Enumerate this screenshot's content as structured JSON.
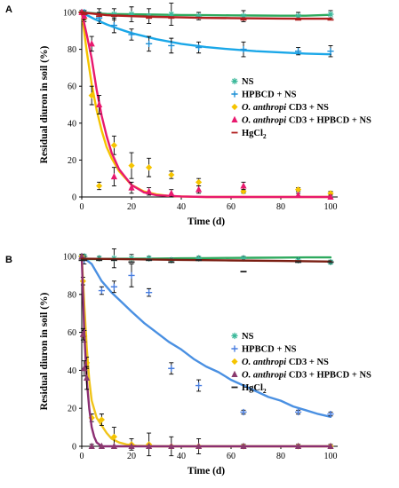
{
  "chart_data": [
    {
      "panel": "A",
      "type": "scatter",
      "xlabel": "Time (d)",
      "ylabel": "Residual diuron in soil (%)",
      "xlim": [
        0,
        100
      ],
      "ylim": [
        0,
        100
      ],
      "xticks": [
        0,
        20,
        40,
        60,
        80,
        100
      ],
      "yticks": [
        0,
        20,
        40,
        60,
        80,
        100
      ],
      "grid": false,
      "legend_position": "right-middle",
      "series": [
        {
          "name": "NS",
          "color": "#3bb89a",
          "marker": "asterisk",
          "x": [
            0,
            1,
            7,
            13,
            20,
            27,
            36,
            47,
            65,
            87,
            100
          ],
          "y": [
            100,
            100,
            99,
            99,
            99,
            98,
            99,
            98,
            98,
            98,
            99
          ],
          "err": [
            1,
            1,
            3,
            3,
            4,
            4,
            6,
            2,
            3,
            2,
            2
          ],
          "fit": {
            "color": "#2eaa5e",
            "x": [
              0,
              5,
              10,
              20,
              30,
              40,
              50,
              60,
              70,
              80,
              90,
              100
            ],
            "y": [
              100,
              99.5,
              99.2,
              99,
              98.8,
              98.6,
              98.5,
              98.4,
              98.3,
              98.2,
              98.2,
              98.7
            ]
          }
        },
        {
          "name": "HPBCD + NS",
          "color": "#1e90d6",
          "marker": "plus",
          "x": [
            0,
            1,
            7,
            13,
            20,
            27,
            36,
            47,
            65,
            87,
            100
          ],
          "y": [
            100,
            100,
            97,
            93,
            88,
            83,
            82,
            81,
            80,
            79,
            79
          ],
          "err": [
            1,
            1,
            3,
            4,
            3,
            4,
            4,
            3,
            4,
            2,
            3
          ],
          "fit": {
            "color": "#1aa7e8",
            "x": [
              0,
              5,
              10,
              15,
              20,
              30,
              40,
              50,
              60,
              70,
              80,
              90,
              100
            ],
            "y": [
              100,
              96.5,
              93.5,
              91,
              88.8,
              85.5,
              83,
              81.2,
              80,
              79,
              78.3,
              77.7,
              77.3
            ]
          }
        },
        {
          "name": "O. anthropi CD3 + NS",
          "color": "#f5c400",
          "marker": "diamond",
          "x": [
            0,
            1,
            4,
            7,
            13,
            20,
            27,
            36,
            47,
            65,
            87,
            100
          ],
          "y": [
            100,
            97,
            55,
            6,
            28,
            17,
            16,
            12,
            8,
            3,
            4,
            2
          ],
          "err": [
            1,
            2,
            5,
            2,
            5,
            7,
            5,
            2,
            2,
            1,
            1,
            1
          ],
          "fit": {
            "color": "#f5c400",
            "x": [
              0,
              2,
              4,
              6,
              8,
              10,
              12,
              15,
              20,
              25,
              30,
              35,
              40,
              50,
              60,
              70,
              80,
              90,
              100
            ],
            "y": [
              100,
              79,
              61,
              47,
              36,
              27,
              21,
              14,
              6.5,
              3,
              1.4,
              0.6,
              0.3,
              0,
              0,
              0,
              0,
              0,
              0
            ]
          }
        },
        {
          "name": "O. anthropi CD3 + HPBCD + NS",
          "color": "#e8196e",
          "marker": "triangle",
          "x": [
            0,
            1,
            4,
            7,
            13,
            20,
            27,
            36,
            47,
            65,
            87,
            100
          ],
          "y": [
            100,
            98,
            83,
            50,
            11,
            5,
            3,
            2,
            4,
            6,
            1,
            0
          ],
          "err": [
            1,
            2,
            4,
            5,
            5,
            3,
            2,
            2,
            2,
            2,
            1,
            1
          ],
          "fit": {
            "color": "#e8196e",
            "x": [
              0,
              2,
              4,
              6,
              8,
              10,
              12,
              15,
              20,
              25,
              30,
              40,
              50,
              60,
              70,
              80,
              90,
              100
            ],
            "y": [
              100,
              88,
              75,
              58,
              44,
              33,
              24,
              15,
              6.5,
              2.5,
              1,
              0.3,
              0,
              0,
              0,
              0,
              0,
              0
            ]
          }
        },
        {
          "name": "HgCl",
          "name_sub": "2",
          "color": "#b01e1e",
          "marker": "dash",
          "x": [
            0,
            1,
            7,
            13,
            20,
            27,
            36,
            47,
            65,
            87,
            100
          ],
          "y": [
            100,
            99,
            98,
            98,
            98,
            97,
            97,
            97,
            96,
            96,
            96
          ],
          "err": [
            0,
            0,
            0,
            0,
            0,
            0,
            0,
            0,
            0,
            0,
            0
          ],
          "fit": {
            "color": "#b01e1e",
            "x": [
              0,
              10,
              20,
              30,
              40,
              50,
              60,
              70,
              80,
              90,
              100
            ],
            "y": [
              100,
              98.5,
              98,
              97.6,
              97.3,
              97,
              96.9,
              96.8,
              96.7,
              96.6,
              96.6
            ]
          }
        }
      ]
    },
    {
      "panel": "B",
      "type": "scatter",
      "xlabel": "Time (d)",
      "ylabel": "Residual diuron in soil (%)",
      "xlim": [
        0,
        100
      ],
      "ylim": [
        0,
        100
      ],
      "xticks": [
        0,
        20,
        40,
        60,
        80,
        100
      ],
      "yticks": [
        0,
        20,
        40,
        60,
        80,
        100
      ],
      "grid": false,
      "legend_position": "right-middle",
      "series": [
        {
          "name": "NS",
          "color": "#3bb89a",
          "marker": "asterisk",
          "x": [
            0,
            1,
            7,
            13,
            20,
            27,
            36,
            47,
            65,
            87,
            100
          ],
          "y": [
            100,
            100,
            99,
            99,
            99,
            99,
            98,
            99,
            99,
            98,
            97
          ],
          "err": [
            1,
            1,
            1,
            5,
            2,
            1,
            1,
            1,
            1,
            1,
            1
          ],
          "fit": {
            "color": "#2eaa5e",
            "x": [
              0,
              10,
              20,
              30,
              40,
              50,
              60,
              70,
              80,
              90,
              100
            ],
            "y": [
              98.5,
              98.7,
              98.8,
              98.9,
              99,
              99.1,
              99.2,
              99.3,
              99.4,
              99.5,
              99.5
            ]
          }
        },
        {
          "name": "HPBCD + NS",
          "color": "#4a7fe0",
          "marker": "plus",
          "x": [
            0,
            1,
            8,
            13,
            20,
            27,
            36,
            47,
            65,
            87,
            100
          ],
          "y": [
            100,
            98,
            82,
            84,
            90,
            81,
            41,
            32,
            18,
            18,
            17
          ],
          "err": [
            1,
            2,
            2,
            3,
            6,
            2,
            3,
            3,
            1,
            1,
            1
          ],
          "fit": {
            "color": "#4a90e2",
            "x": [
              0,
              4,
              8,
              12,
              16,
              20,
              25,
              30,
              35,
              40,
              45,
              50,
              55,
              60,
              65,
              70,
              75,
              80,
              85,
              90,
              95,
              100
            ],
            "y": [
              100,
              96,
              87,
              81,
              76,
              71,
              65,
              60,
              55,
              51,
              46,
              42,
              39,
              35,
              32,
              29,
              26,
              24,
              21,
              19,
              17,
              15.5
            ]
          }
        },
        {
          "name": "O. anthropi CD3 + NS",
          "color": "#f5c400",
          "marker": "diamond",
          "x": [
            0,
            0.5,
            1,
            2,
            4,
            8,
            13,
            20,
            27,
            36,
            47,
            65,
            87,
            100
          ],
          "y": [
            100,
            87,
            58,
            44,
            15,
            14,
            5,
            1,
            1,
            0,
            0,
            0,
            0,
            0
          ],
          "err": [
            1,
            2,
            3,
            3,
            2,
            3,
            5,
            3,
            6,
            5,
            4,
            1,
            1,
            1
          ],
          "fit": {
            "color": "#f0c419",
            "x": [
              0,
              1,
              2,
              3,
              4,
              6,
              8,
              10,
              12,
              15,
              18,
              22,
              30,
              40,
              60,
              80,
              100
            ],
            "y": [
              100,
              75,
              52,
              35,
              24,
              15,
              11,
              7,
              4,
              2,
              1,
              0.3,
              0,
              0,
              0,
              0,
              0
            ]
          }
        },
        {
          "name": "O. anthropi CD3 + HPBCD + NS",
          "color": "#8a3a6e",
          "marker": "triangle",
          "x": [
            0,
            0.5,
            1,
            2,
            4,
            8,
            13,
            20,
            27,
            36,
            47,
            65,
            87,
            100
          ],
          "y": [
            100,
            59,
            41,
            36,
            0,
            0,
            0,
            0,
            0,
            0,
            0,
            0,
            0,
            0
          ],
          "err": [
            1,
            3,
            4,
            6,
            1,
            0,
            0,
            0,
            0,
            0,
            0,
            0,
            0,
            0
          ],
          "fit": {
            "color": "#8b2e72",
            "x": [
              0,
              1,
              2,
              3,
              4,
              5,
              6,
              8,
              10,
              20,
              40,
              60,
              80,
              100
            ],
            "y": [
              100,
              60,
              35,
              20,
              10,
              5,
              2,
              0,
              0,
              0,
              0,
              0,
              0,
              0
            ]
          }
        },
        {
          "name": "HgCl",
          "name_sub": "2",
          "color": "#222222",
          "marker": "dash",
          "x": [
            0,
            1,
            7,
            13,
            20,
            27,
            36,
            47,
            65,
            87,
            100
          ],
          "y": [
            98,
            98,
            98,
            98,
            97,
            98,
            97,
            98,
            92,
            97,
            97
          ],
          "err": [
            0,
            0,
            0,
            0,
            0,
            0,
            0,
            0,
            0,
            0,
            0
          ],
          "fit": {
            "color": "#7a1e12",
            "x": [
              0,
              20,
              40,
              60,
              80,
              100
            ],
            "y": [
              98.8,
              98.5,
              98.2,
              97.9,
              97.6,
              97.3
            ]
          }
        }
      ]
    }
  ]
}
